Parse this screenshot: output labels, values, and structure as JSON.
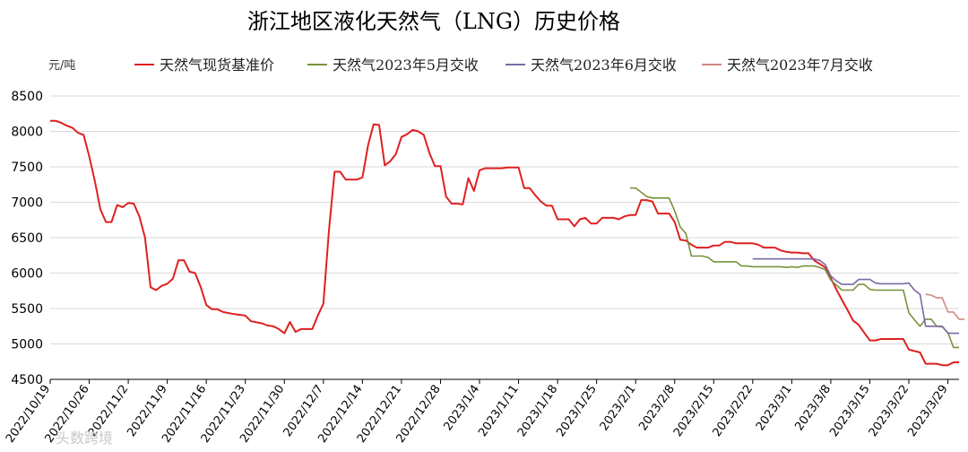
{
  "chart_data": {
    "type": "line",
    "title": "浙江地区液化天然气（LNG）历史价格",
    "unit_label": "元/吨",
    "ylim": [
      4500,
      8500
    ],
    "yticks": [
      4500,
      5000,
      5500,
      6000,
      6500,
      7000,
      7500,
      8000,
      8500
    ],
    "grid": true,
    "legend_position": "top",
    "x_start": "2022/10/19",
    "x_end": "2023/3/31",
    "xtick_labels": [
      "2022/10/19",
      "2022/10/26",
      "2022/11/2",
      "2022/11/9",
      "2022/11/16",
      "2022/11/23",
      "2022/11/30",
      "2022/12/7",
      "2022/12/14",
      "2022/12/21",
      "2022/12/28",
      "2023/1/4",
      "2023/1/11",
      "2023/1/18",
      "2023/1/25",
      "2023/2/1",
      "2023/2/8",
      "2023/2/15",
      "2023/2/22",
      "2023/3/1",
      "2023/3/8",
      "2023/3/15",
      "2023/3/22",
      "2023/3/29"
    ],
    "series": [
      {
        "name": "天然气现货基准价",
        "color": "#e02020",
        "points": [
          [
            "2022/10/19",
            8150
          ],
          [
            "2022/10/20",
            8150
          ],
          [
            "2022/10/21",
            8120
          ],
          [
            "2022/10/22",
            8080
          ],
          [
            "2022/10/23",
            8050
          ],
          [
            "2022/10/24",
            7980
          ],
          [
            "2022/10/25",
            7950
          ],
          [
            "2022/10/26",
            7650
          ],
          [
            "2022/10/27",
            7300
          ],
          [
            "2022/10/28",
            6900
          ],
          [
            "2022/10/29",
            6720
          ],
          [
            "2022/10/30",
            6720
          ],
          [
            "2022/10/31",
            6960
          ],
          [
            "2022/11/1",
            6930
          ],
          [
            "2022/11/2",
            6990
          ],
          [
            "2022/11/3",
            6980
          ],
          [
            "2022/11/4",
            6800
          ],
          [
            "2022/11/5",
            6500
          ],
          [
            "2022/11/6",
            5800
          ],
          [
            "2022/11/7",
            5760
          ],
          [
            "2022/11/8",
            5820
          ],
          [
            "2022/11/9",
            5850
          ],
          [
            "2022/11/10",
            5920
          ],
          [
            "2022/11/11",
            6180
          ],
          [
            "2022/11/12",
            6180
          ],
          [
            "2022/11/13",
            6020
          ],
          [
            "2022/11/14",
            6000
          ],
          [
            "2022/11/15",
            5800
          ],
          [
            "2022/11/16",
            5550
          ],
          [
            "2022/11/17",
            5490
          ],
          [
            "2022/11/18",
            5490
          ],
          [
            "2022/11/19",
            5450
          ],
          [
            "2022/11/21",
            5420
          ],
          [
            "2022/11/23",
            5400
          ],
          [
            "2022/11/24",
            5320
          ],
          [
            "2022/11/26",
            5290
          ],
          [
            "2022/11/27",
            5260
          ],
          [
            "2022/11/28",
            5250
          ],
          [
            "2022/11/29",
            5210
          ],
          [
            "2022/11/30",
            5150
          ],
          [
            "2022/12/1",
            5310
          ],
          [
            "2022/12/2",
            5170
          ],
          [
            "2022/12/3",
            5210
          ],
          [
            "2022/12/4",
            5210
          ],
          [
            "2022/12/5",
            5210
          ],
          [
            "2022/12/6",
            5400
          ],
          [
            "2022/12/7",
            5570
          ],
          [
            "2022/12/8",
            6600
          ],
          [
            "2022/12/9",
            7430
          ],
          [
            "2022/12/10",
            7430
          ],
          [
            "2022/12/11",
            7320
          ],
          [
            "2022/12/12",
            7320
          ],
          [
            "2022/12/13",
            7320
          ],
          [
            "2022/12/14",
            7350
          ],
          [
            "2022/12/15",
            7800
          ],
          [
            "2022/12/16",
            8100
          ],
          [
            "2022/12/17",
            8090
          ],
          [
            "2022/12/18",
            7520
          ],
          [
            "2022/12/19",
            7580
          ],
          [
            "2022/12/20",
            7680
          ],
          [
            "2022/12/21",
            7920
          ],
          [
            "2022/12/22",
            7960
          ],
          [
            "2022/12/23",
            8020
          ],
          [
            "2022/12/24",
            8000
          ],
          [
            "2022/12/25",
            7950
          ],
          [
            "2022/12/26",
            7700
          ],
          [
            "2022/12/27",
            7510
          ],
          [
            "2022/12/28",
            7510
          ],
          [
            "2022/12/29",
            7080
          ],
          [
            "2022/12/30",
            6980
          ],
          [
            "2022/12/31",
            6980
          ],
          [
            "2023/1/1",
            6970
          ],
          [
            "2023/1/2",
            7340
          ],
          [
            "2023/1/3",
            7160
          ],
          [
            "2023/1/4",
            7450
          ],
          [
            "2023/1/5",
            7480
          ],
          [
            "2023/1/6",
            7480
          ],
          [
            "2023/1/7",
            7480
          ],
          [
            "2023/1/8",
            7480
          ],
          [
            "2023/1/9",
            7490
          ],
          [
            "2023/1/10",
            7490
          ],
          [
            "2023/1/11",
            7490
          ],
          [
            "2023/1/12",
            7200
          ],
          [
            "2023/1/13",
            7200
          ],
          [
            "2023/1/14",
            7100
          ],
          [
            "2023/1/15",
            7010
          ],
          [
            "2023/1/16",
            6950
          ],
          [
            "2023/1/17",
            6950
          ],
          [
            "2023/1/18",
            6760
          ],
          [
            "2023/1/19",
            6760
          ],
          [
            "2023/1/20",
            6760
          ],
          [
            "2023/1/21",
            6660
          ],
          [
            "2023/1/22",
            6760
          ],
          [
            "2023/1/23",
            6780
          ],
          [
            "2023/1/24",
            6700
          ],
          [
            "2023/1/25",
            6700
          ],
          [
            "2023/1/26",
            6780
          ],
          [
            "2023/1/27",
            6780
          ],
          [
            "2023/1/28",
            6780
          ],
          [
            "2023/1/29",
            6760
          ],
          [
            "2023/1/30",
            6800
          ],
          [
            "2023/1/31",
            6820
          ],
          [
            "2023/2/1",
            6820
          ],
          [
            "2023/2/2",
            7030
          ],
          [
            "2023/2/3",
            7030
          ],
          [
            "2023/2/4",
            7010
          ],
          [
            "2023/2/5",
            6840
          ],
          [
            "2023/2/6",
            6840
          ],
          [
            "2023/2/7",
            6840
          ],
          [
            "2023/2/8",
            6720
          ],
          [
            "2023/2/9",
            6470
          ],
          [
            "2023/2/10",
            6460
          ],
          [
            "2023/2/11",
            6400
          ],
          [
            "2023/2/12",
            6360
          ],
          [
            "2023/2/13",
            6360
          ],
          [
            "2023/2/14",
            6360
          ],
          [
            "2023/2/15",
            6390
          ],
          [
            "2023/2/16",
            6390
          ],
          [
            "2023/2/17",
            6440
          ],
          [
            "2023/2/18",
            6440
          ],
          [
            "2023/2/19",
            6420
          ],
          [
            "2023/2/20",
            6420
          ],
          [
            "2023/2/21",
            6420
          ],
          [
            "2023/2/22",
            6420
          ],
          [
            "2023/2/23",
            6400
          ],
          [
            "2023/2/24",
            6360
          ],
          [
            "2023/2/25",
            6360
          ],
          [
            "2023/2/26",
            6360
          ],
          [
            "2023/2/27",
            6320
          ],
          [
            "2023/2/28",
            6300
          ],
          [
            "2023/3/1",
            6290
          ],
          [
            "2023/3/2",
            6290
          ],
          [
            "2023/3/3",
            6280
          ],
          [
            "2023/3/4",
            6280
          ],
          [
            "2023/3/5",
            6180
          ],
          [
            "2023/3/6",
            6130
          ],
          [
            "2023/3/7",
            6080
          ],
          [
            "2023/3/8",
            5930
          ],
          [
            "2023/3/9",
            5770
          ],
          [
            "2023/3/10",
            5620
          ],
          [
            "2023/3/11",
            5480
          ],
          [
            "2023/3/12",
            5330
          ],
          [
            "2023/3/13",
            5270
          ],
          [
            "2023/3/14",
            5160
          ],
          [
            "2023/3/15",
            5050
          ],
          [
            "2023/3/16",
            5050
          ],
          [
            "2023/3/17",
            5070
          ],
          [
            "2023/3/18",
            5070
          ],
          [
            "2023/3/19",
            5070
          ],
          [
            "2023/3/20",
            5070
          ],
          [
            "2023/3/21",
            5070
          ],
          [
            "2023/3/22",
            4920
          ],
          [
            "2023/3/23",
            4900
          ],
          [
            "2023/3/24",
            4880
          ],
          [
            "2023/3/25",
            4720
          ],
          [
            "2023/3/26",
            4720
          ],
          [
            "2023/3/27",
            4720
          ],
          [
            "2023/3/28",
            4700
          ],
          [
            "2023/3/29",
            4700
          ],
          [
            "2023/3/30",
            4740
          ],
          [
            "2023/3/31",
            4740
          ]
        ]
      },
      {
        "name": "天然气2023年5月交收",
        "color": "#77933c",
        "points": [
          [
            "2023/1/31",
            7200
          ],
          [
            "2023/2/1",
            7200
          ],
          [
            "2023/2/2",
            7140
          ],
          [
            "2023/2/3",
            7080
          ],
          [
            "2023/2/4",
            7060
          ],
          [
            "2023/2/5",
            7060
          ],
          [
            "2023/2/6",
            7060
          ],
          [
            "2023/2/7",
            7060
          ],
          [
            "2023/2/8",
            6880
          ],
          [
            "2023/2/9",
            6650
          ],
          [
            "2023/2/10",
            6560
          ],
          [
            "2023/2/11",
            6240
          ],
          [
            "2023/2/12",
            6240
          ],
          [
            "2023/2/13",
            6240
          ],
          [
            "2023/2/14",
            6220
          ],
          [
            "2023/2/15",
            6160
          ],
          [
            "2023/2/16",
            6160
          ],
          [
            "2023/2/17",
            6160
          ],
          [
            "2023/2/18",
            6160
          ],
          [
            "2023/2/19",
            6160
          ],
          [
            "2023/2/20",
            6100
          ],
          [
            "2023/2/21",
            6100
          ],
          [
            "2023/2/22",
            6090
          ],
          [
            "2023/2/23",
            6090
          ],
          [
            "2023/2/24",
            6090
          ],
          [
            "2023/2/25",
            6090
          ],
          [
            "2023/2/26",
            6090
          ],
          [
            "2023/2/27",
            6090
          ],
          [
            "2023/2/28",
            6080
          ],
          [
            "2023/3/1",
            6090
          ],
          [
            "2023/3/2",
            6080
          ],
          [
            "2023/3/3",
            6100
          ],
          [
            "2023/3/4",
            6100
          ],
          [
            "2023/3/5",
            6100
          ],
          [
            "2023/3/6",
            6080
          ],
          [
            "2023/3/7",
            6050
          ],
          [
            "2023/3/8",
            5900
          ],
          [
            "2023/3/9",
            5830
          ],
          [
            "2023/3/10",
            5760
          ],
          [
            "2023/3/11",
            5760
          ],
          [
            "2023/3/12",
            5760
          ],
          [
            "2023/3/13",
            5840
          ],
          [
            "2023/3/14",
            5840
          ],
          [
            "2023/3/15",
            5770
          ],
          [
            "2023/3/16",
            5760
          ],
          [
            "2023/3/17",
            5760
          ],
          [
            "2023/3/18",
            5760
          ],
          [
            "2023/3/19",
            5760
          ],
          [
            "2023/3/20",
            5760
          ],
          [
            "2023/3/21",
            5760
          ],
          [
            "2023/3/22",
            5440
          ],
          [
            "2023/3/23",
            5340
          ],
          [
            "2023/3/24",
            5250
          ],
          [
            "2023/3/25",
            5350
          ],
          [
            "2023/3/26",
            5350
          ],
          [
            "2023/3/27",
            5250
          ],
          [
            "2023/3/28",
            5240
          ],
          [
            "2023/3/29",
            5160
          ],
          [
            "2023/3/30",
            4950
          ],
          [
            "2023/3/31",
            4950
          ]
        ]
      },
      {
        "name": "天然气2023年6月交收",
        "color": "#7b68a6",
        "points": [
          [
            "2023/2/22",
            6200
          ],
          [
            "2023/2/24",
            6200
          ],
          [
            "2023/2/26",
            6200
          ],
          [
            "2023/2/28",
            6200
          ],
          [
            "2023/3/2",
            6200
          ],
          [
            "2023/3/4",
            6200
          ],
          [
            "2023/3/5",
            6200
          ],
          [
            "2023/3/6",
            6180
          ],
          [
            "2023/3/7",
            6120
          ],
          [
            "2023/3/8",
            5960
          ],
          [
            "2023/3/9",
            5890
          ],
          [
            "2023/3/10",
            5840
          ],
          [
            "2023/3/11",
            5840
          ],
          [
            "2023/3/12",
            5840
          ],
          [
            "2023/3/13",
            5910
          ],
          [
            "2023/3/14",
            5910
          ],
          [
            "2023/3/15",
            5910
          ],
          [
            "2023/3/16",
            5860
          ],
          [
            "2023/3/17",
            5850
          ],
          [
            "2023/3/18",
            5850
          ],
          [
            "2023/3/19",
            5850
          ],
          [
            "2023/3/20",
            5850
          ],
          [
            "2023/3/21",
            5850
          ],
          [
            "2023/3/22",
            5860
          ],
          [
            "2023/3/23",
            5760
          ],
          [
            "2023/3/24",
            5700
          ],
          [
            "2023/3/25",
            5250
          ],
          [
            "2023/3/26",
            5250
          ],
          [
            "2023/3/27",
            5250
          ],
          [
            "2023/3/28",
            5250
          ],
          [
            "2023/3/29",
            5150
          ],
          [
            "2023/3/30",
            5150
          ],
          [
            "2023/3/31",
            5150
          ]
        ]
      },
      {
        "name": "天然气2023年7月交收",
        "color": "#d08a84",
        "points": [
          [
            "2023/3/25",
            5700
          ],
          [
            "2023/3/26",
            5690
          ],
          [
            "2023/3/27",
            5650
          ],
          [
            "2023/3/28",
            5650
          ],
          [
            "2023/3/29",
            5450
          ],
          [
            "2023/3/30",
            5450
          ],
          [
            "2023/3/31",
            5350
          ],
          [
            "2023/4/1",
            5350
          ]
        ]
      }
    ]
  },
  "watermark": "头数跨境"
}
